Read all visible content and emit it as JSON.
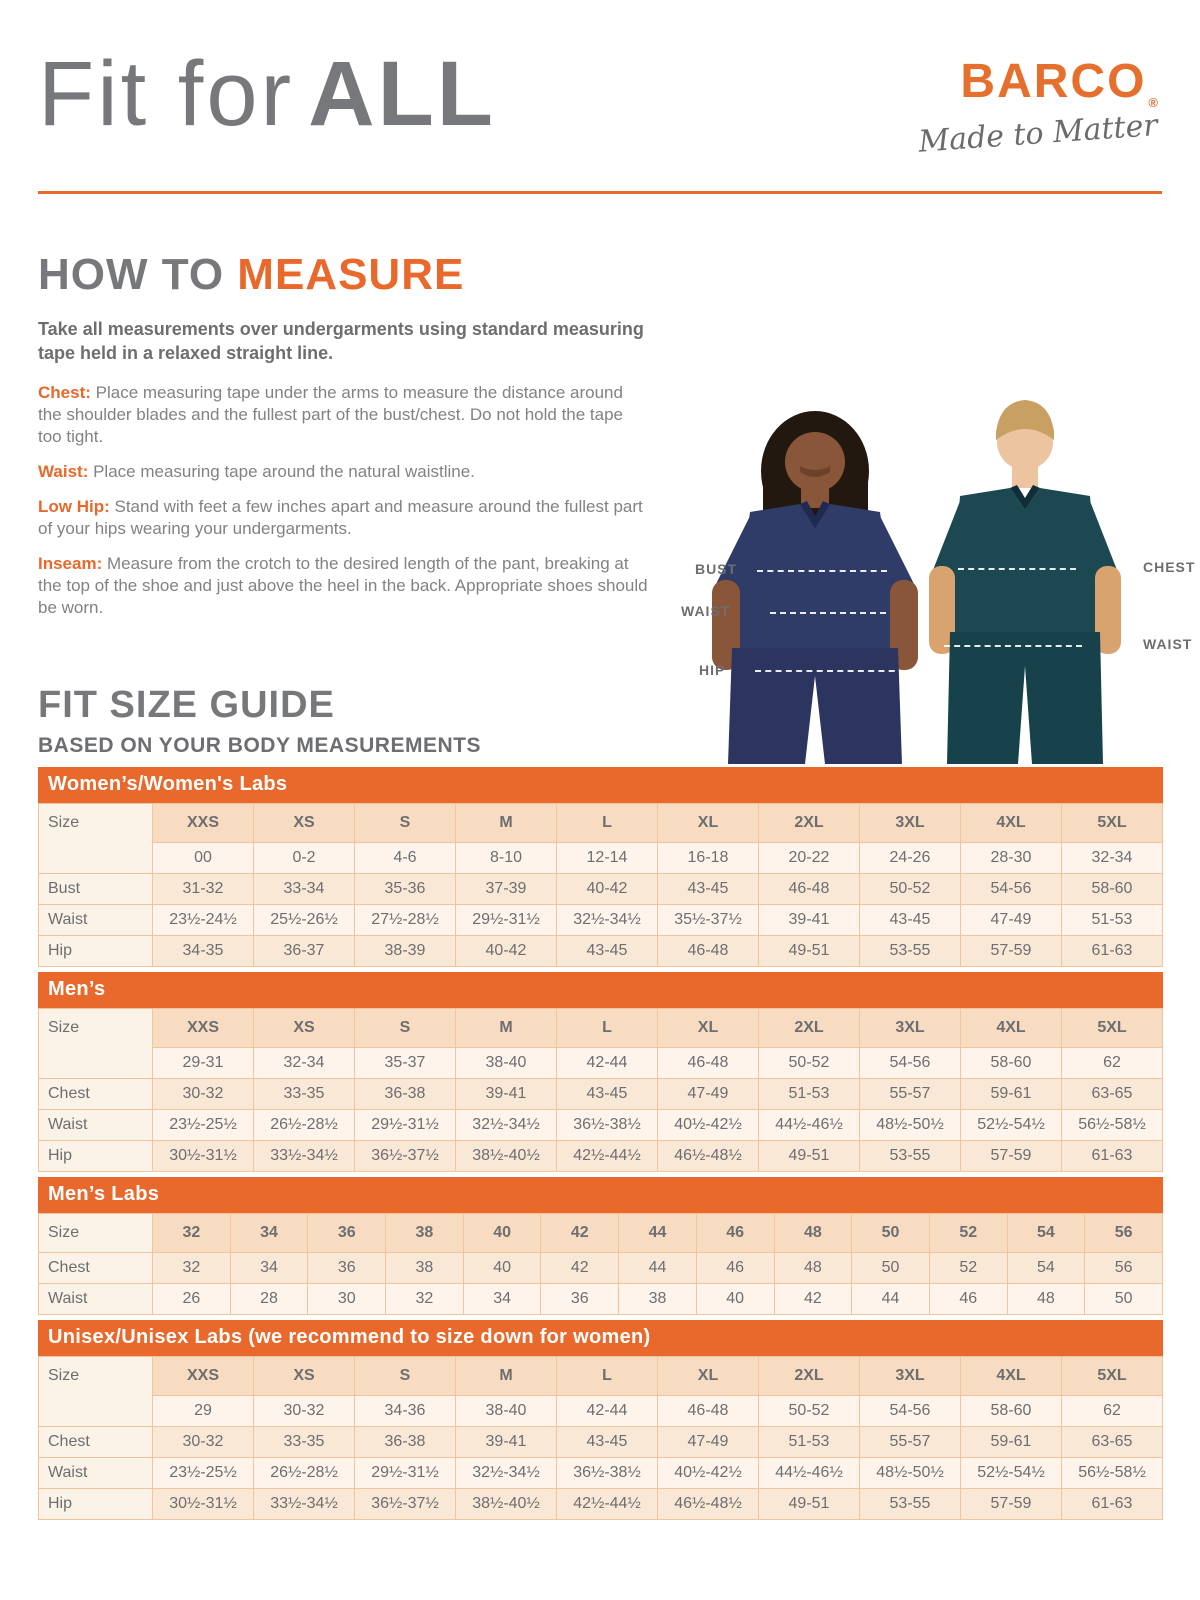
{
  "colors": {
    "accent_orange": "#E8692B",
    "logo_orange": "#E66F2E",
    "heading_gray": "#77787B"
  },
  "masthead": {
    "title_light": "Fit for",
    "title_bold": "ALL",
    "brand_name": "BARCO",
    "brand_reg": "®",
    "brand_tagline": "Made to Matter"
  },
  "how_to_measure": {
    "heading_gray": "HOW TO",
    "heading_orange": "MEASURE",
    "intro": "Take all measurements over undergarments using standard measuring tape held in a relaxed straight line.",
    "steps": [
      {
        "label": "Chest:",
        "text": "Place measuring tape under the arms to measure the distance around the shoulder blades and the fullest part of the bust/chest. Do not hold the tape too tight."
      },
      {
        "label": "Waist:",
        "text": "Place measuring tape around the natural waistline."
      },
      {
        "label": "Low Hip:",
        "text": "Stand with feet a few inches apart and measure around the fullest part of your hips wearing your undergarments."
      },
      {
        "label": "Inseam:",
        "text": "Measure from the crotch to the desired length of the pant, breaking at the top of the shoe and just above the heel in the back. Appropriate shoes should be worn."
      }
    ]
  },
  "figure": {
    "labels": {
      "bust": "BUST",
      "waist_left": "WAIST",
      "hip": "HIP",
      "chest": "CHEST",
      "waist_right": "WAIST"
    }
  },
  "fit_size_guide": {
    "heading": "FIT SIZE GUIDE",
    "subheading": "BASED ON YOUR BODY MEASUREMENTS",
    "size_label": "Size",
    "tables": [
      {
        "banner": "Women’s/Women's Labs",
        "sizes": [
          "XXS",
          "XS",
          "S",
          "M",
          "L",
          "XL",
          "2XL",
          "3XL",
          "4XL",
          "5XL"
        ],
        "numeric_sizes": [
          "00",
          "0-2",
          "4-6",
          "8-10",
          "12-14",
          "16-18",
          "20-22",
          "24-26",
          "28-30",
          "32-34"
        ],
        "rows": [
          {
            "label": "Bust",
            "values": [
              "31-32",
              "33-34",
              "35-36",
              "37-39",
              "40-42",
              "43-45",
              "46-48",
              "50-52",
              "54-56",
              "58-60"
            ]
          },
          {
            "label": "Waist",
            "values": [
              "23½-24½",
              "25½-26½",
              "27½-28½",
              "29½-31½",
              "32½-34½",
              "35½-37½",
              "39-41",
              "43-45",
              "47-49",
              "51-53"
            ]
          },
          {
            "label": "Hip",
            "values": [
              "34-35",
              "36-37",
              "38-39",
              "40-42",
              "43-45",
              "46-48",
              "49-51",
              "53-55",
              "57-59",
              "61-63"
            ]
          }
        ]
      },
      {
        "banner": "Men’s",
        "sizes": [
          "XXS",
          "XS",
          "S",
          "M",
          "L",
          "XL",
          "2XL",
          "3XL",
          "4XL",
          "5XL"
        ],
        "numeric_sizes": [
          "29-31",
          "32-34",
          "35-37",
          "38-40",
          "42-44",
          "46-48",
          "50-52",
          "54-56",
          "58-60",
          "62"
        ],
        "rows": [
          {
            "label": "Chest",
            "values": [
              "30-32",
              "33-35",
              "36-38",
              "39-41",
              "43-45",
              "47-49",
              "51-53",
              "55-57",
              "59-61",
              "63-65"
            ]
          },
          {
            "label": "Waist",
            "values": [
              "23½-25½",
              "26½-28½",
              "29½-31½",
              "32½-34½",
              "36½-38½",
              "40½-42½",
              "44½-46½",
              "48½-50½",
              "52½-54½",
              "56½-58½"
            ]
          },
          {
            "label": "Hip",
            "values": [
              "30½-31½",
              "33½-34½",
              "36½-37½",
              "38½-40½",
              "42½-44½",
              "46½-48½",
              "49-51",
              "53-55",
              "57-59",
              "61-63"
            ]
          }
        ]
      },
      {
        "banner": "Men’s Labs",
        "sizes": [
          "32",
          "34",
          "36",
          "38",
          "40",
          "42",
          "44",
          "46",
          "48",
          "50",
          "52",
          "54",
          "56"
        ],
        "numeric_sizes": null,
        "rows": [
          {
            "label": "Chest",
            "values": [
              "32",
              "34",
              "36",
              "38",
              "40",
              "42",
              "44",
              "46",
              "48",
              "50",
              "52",
              "54",
              "56"
            ]
          },
          {
            "label": "Waist",
            "values": [
              "26",
              "28",
              "30",
              "32",
              "34",
              "36",
              "38",
              "40",
              "42",
              "44",
              "46",
              "48",
              "50"
            ]
          }
        ]
      },
      {
        "banner": "Unisex/Unisex Labs (we recommend to size down for women)",
        "sizes": [
          "XXS",
          "XS",
          "S",
          "M",
          "L",
          "XL",
          "2XL",
          "3XL",
          "4XL",
          "5XL"
        ],
        "numeric_sizes": [
          "29",
          "30-32",
          "34-36",
          "38-40",
          "42-44",
          "46-48",
          "50-52",
          "54-56",
          "58-60",
          "62"
        ],
        "rows": [
          {
            "label": "Chest",
            "values": [
              "30-32",
              "33-35",
              "36-38",
              "39-41",
              "43-45",
              "47-49",
              "51-53",
              "55-57",
              "59-61",
              "63-65"
            ]
          },
          {
            "label": "Waist",
            "values": [
              "23½-25½",
              "26½-28½",
              "29½-31½",
              "32½-34½",
              "36½-38½",
              "40½-42½",
              "44½-46½",
              "48½-50½",
              "52½-54½",
              "56½-58½"
            ]
          },
          {
            "label": "Hip",
            "values": [
              "30½-31½",
              "33½-34½",
              "36½-37½",
              "38½-40½",
              "42½-44½",
              "46½-48½",
              "49-51",
              "53-55",
              "57-59",
              "61-63"
            ]
          }
        ]
      }
    ]
  }
}
